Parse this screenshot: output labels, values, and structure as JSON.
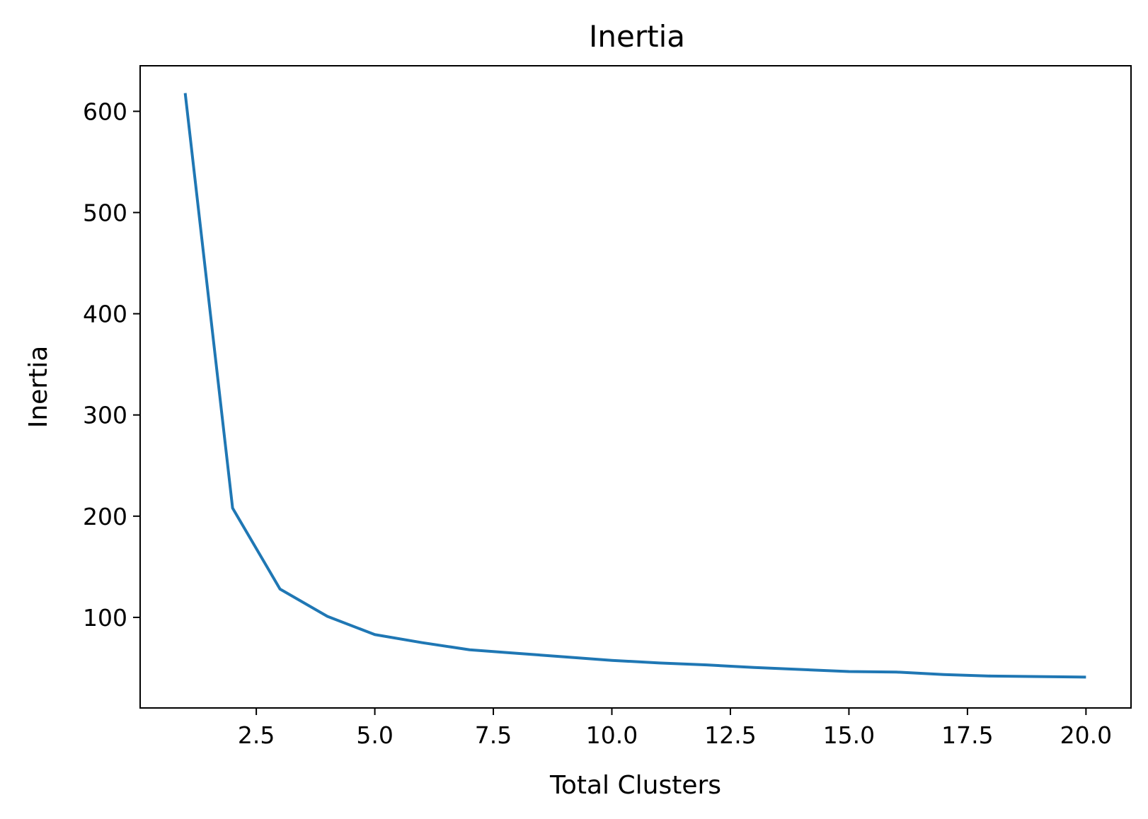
{
  "chart_data": {
    "type": "line",
    "title": "Inertia",
    "xlabel": "Total Clusters",
    "ylabel": "Inertia",
    "xlim": [
      0.05,
      20.95
    ],
    "ylim": [
      10.5,
      645
    ],
    "xticks": [
      2.5,
      5.0,
      7.5,
      10.0,
      12.5,
      15.0,
      17.5,
      20.0
    ],
    "xtick_labels": [
      "2.5",
      "5.0",
      "7.5",
      "10.0",
      "12.5",
      "15.0",
      "17.5",
      "20.0"
    ],
    "yticks": [
      100,
      200,
      300,
      400,
      500,
      600
    ],
    "ytick_labels": [
      "100",
      "200",
      "300",
      "400",
      "500",
      "600"
    ],
    "grid": false,
    "series": [
      {
        "color": "#1f77b4",
        "x": [
          1,
          2,
          3,
          4,
          5,
          6,
          7,
          8,
          9,
          10,
          11,
          12,
          13,
          14,
          15,
          16,
          17,
          18,
          19,
          20
        ],
        "y": [
          618,
          208,
          128,
          101,
          83,
          75,
          68,
          64.5,
          61,
          57.5,
          55,
          53,
          50.5,
          48.5,
          46.5,
          46,
          43.5,
          42,
          41.5,
          41
        ]
      }
    ]
  }
}
